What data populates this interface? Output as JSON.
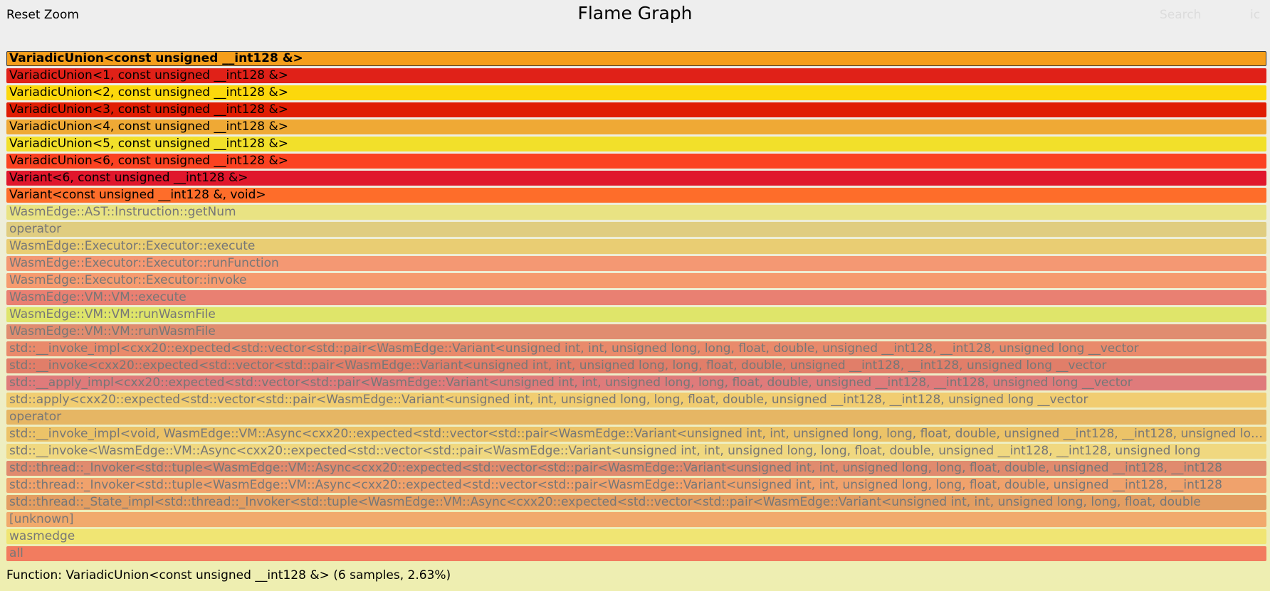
{
  "header": {
    "reset_zoom": "Reset Zoom",
    "title": "Flame Graph",
    "search": "Search",
    "ignore_case": "ic"
  },
  "frames": [
    {
      "label": "VariadicUnion<const unsigned __int128 &>",
      "color": "#f59e1b",
      "state": "selected"
    },
    {
      "label": "VariadicUnion<1, const unsigned __int128 &>",
      "color": "#e02118",
      "state": "active"
    },
    {
      "label": "VariadicUnion<2, const unsigned __int128 &>",
      "color": "#fcd80c",
      "state": "active"
    },
    {
      "label": "VariadicUnion<3, const unsigned __int128 &>",
      "color": "#e01d03",
      "state": "active"
    },
    {
      "label": "VariadicUnion<4, const unsigned __int128 &>",
      "color": "#efa935",
      "state": "active"
    },
    {
      "label": "VariadicUnion<5, const unsigned __int128 &>",
      "color": "#f2e02a",
      "state": "active"
    },
    {
      "label": "VariadicUnion<6, const unsigned __int128 &>",
      "color": "#fb4221",
      "state": "active"
    },
    {
      "label": "Variant<6, const unsigned __int128 &>",
      "color": "#e0172c",
      "state": "active"
    },
    {
      "label": "Variant<const unsigned __int128 &, void>",
      "color": "#fe6d2a",
      "state": "active"
    },
    {
      "label": "WasmEdge::AST::Instruction::getNum",
      "color": "#e9e383",
      "state": "dim"
    },
    {
      "label": "operator",
      "color": "#e0cd80",
      "state": "dim"
    },
    {
      "label": "WasmEdge::Executor::Executor::execute",
      "color": "#e9cd73",
      "state": "dim"
    },
    {
      "label": "WasmEdge::Executor::Executor::runFunction",
      "color": "#f49873",
      "state": "dim"
    },
    {
      "label": "WasmEdge::Executor::Executor::invoke",
      "color": "#f69b6f",
      "state": "dim"
    },
    {
      "label": "WasmEdge::VM::VM::execute",
      "color": "#e98072",
      "state": "dim"
    },
    {
      "label": "WasmEdge::VM::VM::runWasmFile",
      "color": "#dfe56a",
      "state": "dim"
    },
    {
      "label": "WasmEdge::VM::VM::runWasmFile",
      "color": "#e08d70",
      "state": "dim"
    },
    {
      "label": "std::__invoke_impl<cxx20::expected<std::vector<std::pair<WasmEdge::Variant<unsigned int, int, unsigned long, long, float, double, unsigned __int128, __int128, unsigned long __vector",
      "color": "#e98a6b",
      "state": "dim"
    },
    {
      "label": "std::__invoke<cxx20::expected<std::vector<std::pair<WasmEdge::Variant<unsigned int, int, unsigned long, long, float, double, unsigned __int128, __int128, unsigned long __vector",
      "color": "#e17e69",
      "state": "dim"
    },
    {
      "label": "std::__apply_impl<cxx20::expected<std::vector<std::pair<WasmEdge::Variant<unsigned int, int, unsigned long, long, float, double, unsigned __int128, __int128, unsigned long __vector",
      "color": "#df7b7b",
      "state": "dim"
    },
    {
      "label": "std::apply<cxx20::expected<std::vector<std::pair<WasmEdge::Variant<unsigned int, int, unsigned long, long, float, double, unsigned __int128, __int128, unsigned long __vector",
      "color": "#f1cd71",
      "state": "dim"
    },
    {
      "label": "operator",
      "color": "#e6b664",
      "state": "dim"
    },
    {
      "label": "std::__invoke_impl<void, WasmEdge::VM::Async<cxx20::expected<std::vector<std::pair<WasmEdge::Variant<unsigned int, int, unsigned long, long, float, double, unsigned __int128, __int128, unsigned long",
      "color": "#ecc368",
      "state": "dim"
    },
    {
      "label": "std::__invoke<WasmEdge::VM::Async<cxx20::expected<std::vector<std::pair<WasmEdge::Variant<unsigned int, int, unsigned long, long, float, double, unsigned __int128, __int128, unsigned long",
      "color": "#f0d880",
      "state": "dim"
    },
    {
      "label": "std::thread::_Invoker<std::tuple<WasmEdge::VM::Async<cxx20::expected<std::vector<std::pair<WasmEdge::Variant<unsigned int, int, unsigned long, long, float, double, unsigned __int128, __int128",
      "color": "#e08b6e",
      "state": "dim"
    },
    {
      "label": "std::thread::_Invoker<std::tuple<WasmEdge::VM::Async<cxx20::expected<std::vector<std::pair<WasmEdge::Variant<unsigned int, int, unsigned long, long, float, double, unsigned __int128, __int128",
      "color": "#f0a26c",
      "state": "dim"
    },
    {
      "label": "std::thread::_State_impl<std::thread::_Invoker<std::tuple<WasmEdge::VM::Async<cxx20::expected<std::vector<std::pair<WasmEdge::Variant<unsigned int, int, unsigned long, long, float, double",
      "color": "#e39e62",
      "state": "dim"
    },
    {
      "label": "[unknown]",
      "color": "#f1aa6c",
      "state": "dim"
    },
    {
      "label": "wasmedge",
      "color": "#f0e573",
      "state": "dim"
    },
    {
      "label": "all",
      "color": "#f27c5f",
      "state": "dim"
    }
  ],
  "details": "Function: VariadicUnion<const unsigned __int128 &> (6 samples, 2.63%)"
}
